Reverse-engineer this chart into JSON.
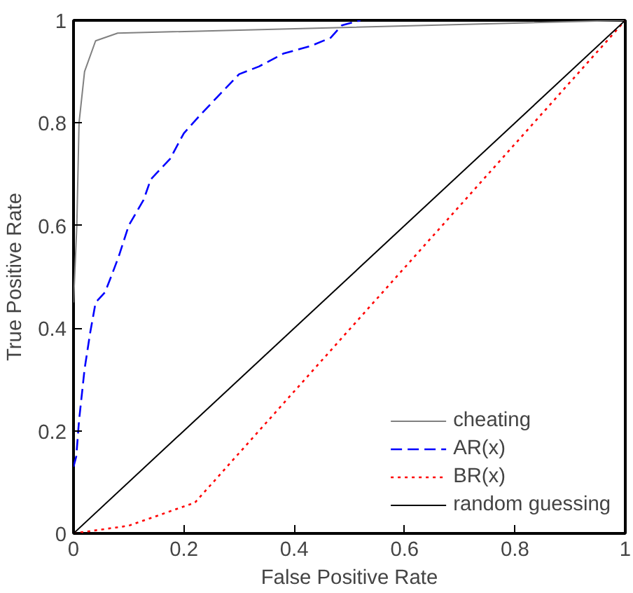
{
  "chart_data": {
    "type": "line",
    "xlabel": "False Positive Rate",
    "ylabel": "True Positive Rate",
    "xlim": [
      0,
      1
    ],
    "ylim": [
      0,
      1
    ],
    "xticks": [
      0,
      0.2,
      0.4,
      0.6,
      0.8,
      1
    ],
    "yticks": [
      0,
      0.2,
      0.4,
      0.6,
      0.8,
      1
    ],
    "grid": false,
    "legend": "bottom right",
    "marker": "none",
    "series": [
      {
        "name": "cheating",
        "color": "#808080",
        "line_style": "solid",
        "x": [
          0,
          0.006,
          0.01,
          0.02,
          0.04,
          0.08,
          1
        ],
        "values": [
          0.45,
          0.6,
          0.8,
          0.9,
          0.96,
          0.975,
          1
        ]
      },
      {
        "name": "AR(x)",
        "color": "#0000ff",
        "line_style": "dashed",
        "x": [
          0,
          0.005,
          0.01,
          0.02,
          0.03,
          0.04,
          0.057,
          0.068,
          0.082,
          0.1,
          0.127,
          0.14,
          0.175,
          0.2,
          0.225,
          0.26,
          0.3,
          0.336,
          0.38,
          0.43,
          0.466,
          0.486,
          0.52
        ],
        "values": [
          0.13,
          0.15,
          0.22,
          0.32,
          0.39,
          0.45,
          0.47,
          0.5,
          0.54,
          0.6,
          0.65,
          0.69,
          0.73,
          0.78,
          0.81,
          0.85,
          0.895,
          0.91,
          0.935,
          0.95,
          0.966,
          0.99,
          1
        ]
      },
      {
        "name": "BR(x)",
        "color": "#ff0000",
        "line_style": "dotted",
        "x": [
          0,
          0.1,
          0.22,
          1
        ],
        "values": [
          0,
          0.015,
          0.06,
          1
        ]
      },
      {
        "name": "random guessing",
        "color": "#000000",
        "line_style": "solid",
        "x": [
          0,
          1
        ],
        "values": [
          0,
          1
        ]
      }
    ]
  }
}
